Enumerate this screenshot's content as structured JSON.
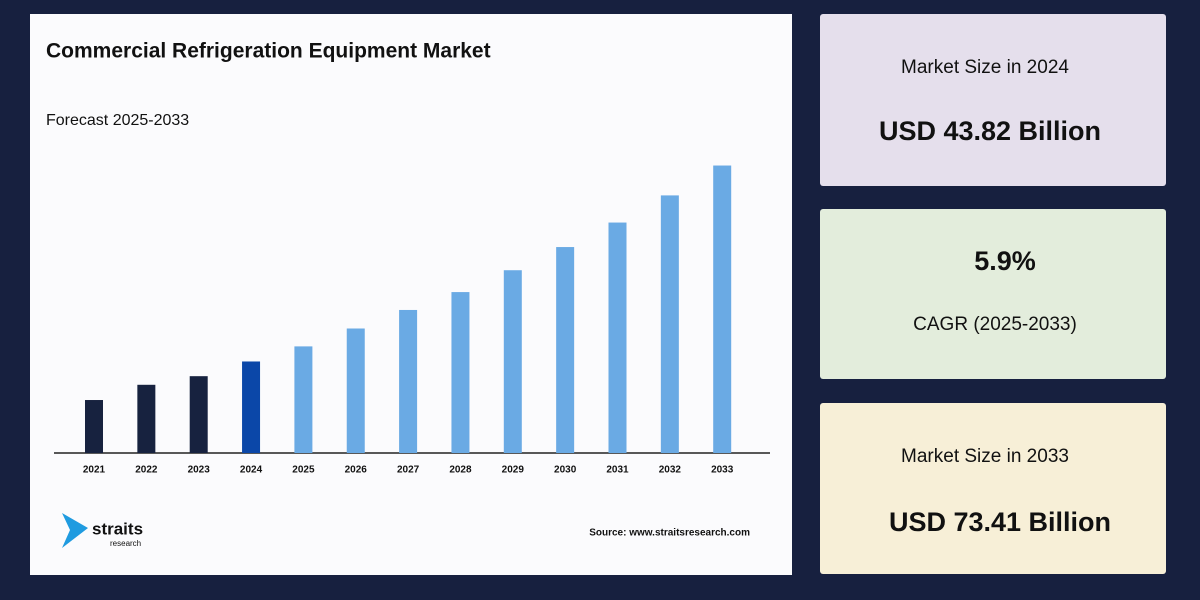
{
  "chart_data": {
    "type": "bar",
    "title": "Commercial Refrigeration Equipment Market",
    "subtitle": "Forecast 2025-2033",
    "categories": [
      "2021",
      "2022",
      "2023",
      "2024",
      "2025",
      "2026",
      "2027",
      "2028",
      "2029",
      "2030",
      "2031",
      "2032",
      "2033"
    ],
    "values": [
      38.0,
      40.3,
      41.6,
      43.82,
      46.1,
      48.8,
      51.6,
      54.3,
      57.6,
      61.1,
      64.8,
      68.9,
      73.41
    ],
    "colors": [
      "#17223f",
      "#17223f",
      "#17223f",
      "#0b47a8",
      "#6aaae4",
      "#6aaae4",
      "#6aaae4",
      "#6aaae4",
      "#6aaae4",
      "#6aaae4",
      "#6aaae4",
      "#6aaae4",
      "#6aaae4"
    ],
    "ylim": [
      30,
      75
    ],
    "source": "Source: www.straitsresearch.com",
    "logo": {
      "name": "straits",
      "sub": "research"
    }
  },
  "cards": [
    {
      "label": "Market Size in 2024",
      "value": "USD 43.82 Billion"
    },
    {
      "label": "CAGR (2025-2033)",
      "value": "5.9%"
    },
    {
      "label": "Market Size in 2033",
      "value": "USD 73.41 Billion"
    }
  ]
}
